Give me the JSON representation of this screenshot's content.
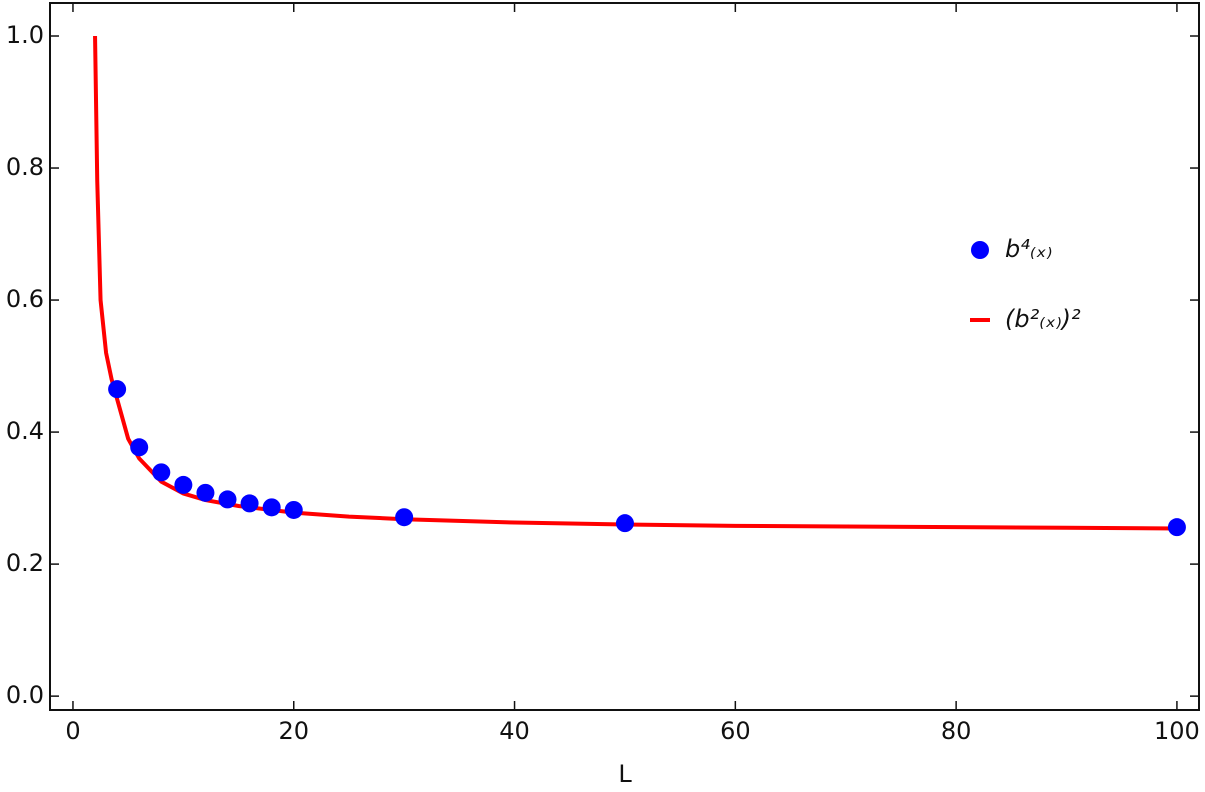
{
  "chart_data": {
    "type": "scatter",
    "x_label": "L",
    "xlim": [
      -2.08,
      102.0
    ],
    "ylim": [
      -0.021,
      1.05
    ],
    "xticks": [
      0,
      20,
      40,
      60,
      80,
      100
    ],
    "yticks": [
      {
        "value": 0,
        "label": "0.0"
      },
      0.2,
      0.4,
      0.6,
      0.8,
      {
        "value": 1,
        "label": "1.0"
      }
    ],
    "grid": false,
    "legend": "right",
    "series": [
      {
        "name": "b⁴₍ₓ₎",
        "type": "scatter",
        "color": "#0000ff",
        "x": [
          4,
          6,
          8,
          10,
          12,
          14,
          16,
          18,
          20,
          30,
          50,
          100
        ],
        "values": [
          0.465,
          0.377,
          0.339,
          0.32,
          0.308,
          0.298,
          0.292,
          0.286,
          0.282,
          0.271,
          0.262,
          0.256
        ]
      },
      {
        "name": "(b²₍ₓ₎)²",
        "type": "line",
        "color": "#ff0000",
        "x": [
          2,
          2.2,
          2.5,
          3,
          3.5,
          4,
          5,
          6,
          8,
          10,
          12,
          15,
          20,
          25,
          30,
          40,
          50,
          60,
          70,
          80,
          90,
          100
        ],
        "values": [
          1.0,
          0.78,
          0.6,
          0.52,
          0.48,
          0.45,
          0.39,
          0.36,
          0.325,
          0.307,
          0.297,
          0.288,
          0.278,
          0.272,
          0.268,
          0.263,
          0.26,
          0.258,
          0.257,
          0.256,
          0.255,
          0.254
        ]
      }
    ]
  }
}
